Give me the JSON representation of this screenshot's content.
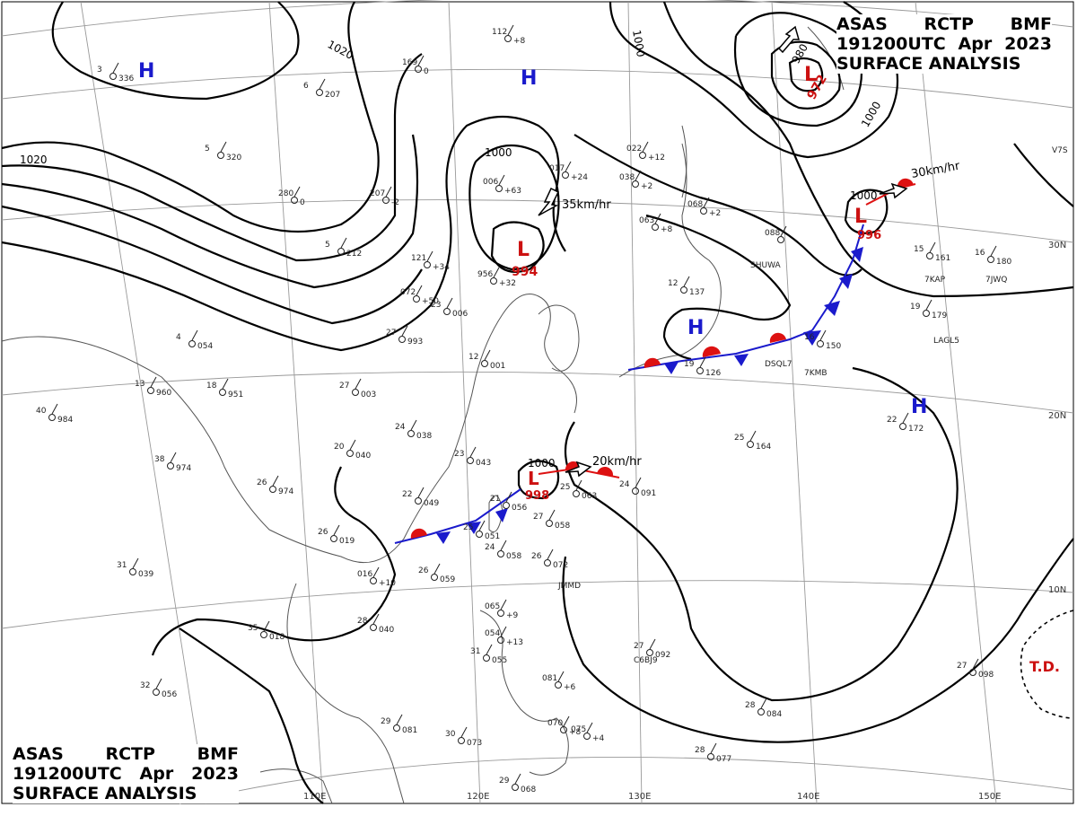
{
  "header": {
    "line1": [
      "ASAS",
      "RCTP",
      "BMF"
    ],
    "line2": [
      "191200UTC",
      "Apr",
      "2023"
    ],
    "line3": "SURFACE ANALYSIS"
  },
  "colors": {
    "high": "#1a1acc",
    "low": "#cc1111",
    "cold_front": "#1a1acc",
    "warm_front": "#dd1111",
    "isobar": "#000000",
    "coast": "#555555",
    "grid": "#888888"
  },
  "pressure_centers": [
    {
      "type": "H",
      "label": "H"
    },
    {
      "type": "H",
      "label": "H"
    },
    {
      "type": "H",
      "label": "H"
    },
    {
      "type": "H",
      "label": "H"
    },
    {
      "type": "L",
      "label": "L",
      "value": "994"
    },
    {
      "type": "L",
      "label": "L",
      "value": "972"
    },
    {
      "type": "L",
      "label": "L",
      "value": "996"
    },
    {
      "type": "L",
      "label": "L",
      "value": "998"
    }
  ],
  "isobar_labels": [
    "1020",
    "1020",
    "1000",
    "1000",
    "1000",
    "1000",
    "1000",
    "980"
  ],
  "motions": [
    "35km/hr",
    "30km/hr",
    "20km/hr"
  ],
  "tropical": "T.D.",
  "lon_labels": [
    "110E",
    "120E",
    "130E",
    "140E",
    "150E"
  ],
  "lat_labels": [
    "30N",
    "20N",
    "10N"
  ],
  "stations": [
    {
      "a": "3",
      "b": "336"
    },
    {
      "a": "6",
      "b": "207"
    },
    {
      "a": "169",
      "b": "0"
    },
    {
      "a": "112",
      "b": "+8"
    },
    {
      "a": "5",
      "b": "320"
    },
    {
      "a": "280",
      "b": "0"
    },
    {
      "a": "207",
      "b": "-2"
    },
    {
      "a": "5",
      "b": "212"
    },
    {
      "a": "121",
      "b": "+34"
    },
    {
      "a": "072",
      "b": "+50"
    },
    {
      "a": "23",
      "b": "006"
    },
    {
      "a": "956",
      "b": "+32"
    },
    {
      "a": "006",
      "b": "+63"
    },
    {
      "a": "017",
      "b": "+24"
    },
    {
      "a": "022",
      "b": "+12"
    },
    {
      "a": "038",
      "b": "+2"
    },
    {
      "a": "063",
      "b": "+8"
    },
    {
      "a": "068",
      "b": "+2"
    },
    {
      "a": "088",
      "b": ""
    },
    {
      "a": "4",
      "b": "054"
    },
    {
      "a": "13",
      "b": "960"
    },
    {
      "a": "18",
      "b": "951"
    },
    {
      "a": "27",
      "b": "993"
    },
    {
      "a": "27",
      "b": "003"
    },
    {
      "a": "12",
      "b": "001"
    },
    {
      "a": "40",
      "b": "984"
    },
    {
      "a": "38",
      "b": "974"
    },
    {
      "a": "24",
      "b": "038"
    },
    {
      "a": "20",
      "b": "040"
    },
    {
      "a": "23",
      "b": "043"
    },
    {
      "a": "26",
      "b": "974"
    },
    {
      "a": "22",
      "b": "049"
    },
    {
      "a": "21",
      "b": "056"
    },
    {
      "a": "27",
      "b": "058"
    },
    {
      "a": "25",
      "b": "063"
    },
    {
      "a": "24",
      "b": "091"
    },
    {
      "a": "26",
      "b": "019"
    },
    {
      "a": "25",
      "b": "051"
    },
    {
      "a": "24",
      "b": "058"
    },
    {
      "a": "26",
      "b": "072"
    },
    {
      "a": "31",
      "b": "039"
    },
    {
      "a": "016",
      "b": "+10"
    },
    {
      "a": "26",
      "b": "059"
    },
    {
      "a": "28",
      "b": "040"
    },
    {
      "a": "35",
      "b": "018"
    },
    {
      "a": "32",
      "b": "056"
    },
    {
      "a": "29",
      "b": "081"
    },
    {
      "a": "30",
      "b": "073"
    },
    {
      "a": "065",
      "b": "+9"
    },
    {
      "a": "054",
      "b": "+13"
    },
    {
      "a": "31",
      "b": "055"
    },
    {
      "a": "081",
      "b": "+6"
    },
    {
      "a": "070",
      "b": "+8"
    },
    {
      "a": "075",
      "b": "+4"
    },
    {
      "a": "29",
      "b": "068"
    },
    {
      "a": "27",
      "b": "092"
    },
    {
      "a": "28",
      "b": "084"
    },
    {
      "a": "28",
      "b": "077"
    },
    {
      "a": "27",
      "b": "098"
    },
    {
      "a": "22",
      "b": "172"
    },
    {
      "a": "25",
      "b": "164"
    },
    {
      "a": "19",
      "b": "126"
    },
    {
      "a": "16",
      "b": "150"
    },
    {
      "a": "19",
      "b": "179"
    },
    {
      "a": "15",
      "b": "161"
    },
    {
      "a": "16",
      "b": "180"
    },
    {
      "a": "12",
      "b": "137"
    }
  ],
  "ship_ids": [
    "SHUWA",
    "7KAP",
    "7JWQ",
    "LAGL5",
    "DSQL7",
    "7KMB",
    "JMMD",
    "C6BJ9",
    "V7S"
  ]
}
